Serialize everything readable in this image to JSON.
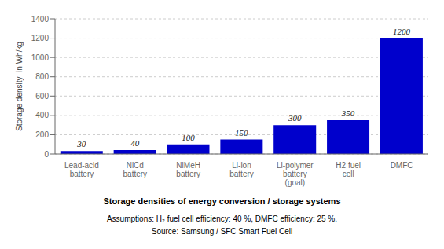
{
  "chart_data": {
    "type": "bar",
    "title": "Storage densities of energy conversion / storage systems",
    "categories": [
      "Lead-acid\nbattery",
      "NiCd\nbattery",
      "NiMeH\nbattery",
      "Li-ion\nbattery",
      "Li-polymer\nbattery\n(goal)",
      "H2 fuel\ncell",
      "DMFC"
    ],
    "values": [
      30,
      40,
      100,
      150,
      300,
      350,
      1200
    ],
    "color": "#0000CC",
    "ylabel": "Storage density  in Wh/kg",
    "ylim": [
      0,
      1400
    ],
    "yticks": [
      0,
      200,
      400,
      600,
      800,
      1000,
      1200,
      1400
    ],
    "grid": true,
    "data_labels": true,
    "annotations": [
      "Assumptions: H₂ fuel cell efficiency: 40 %, DMFC efficiency: 25 %.",
      "Source: Samsung / SFC Smart Fuel Cell"
    ]
  }
}
